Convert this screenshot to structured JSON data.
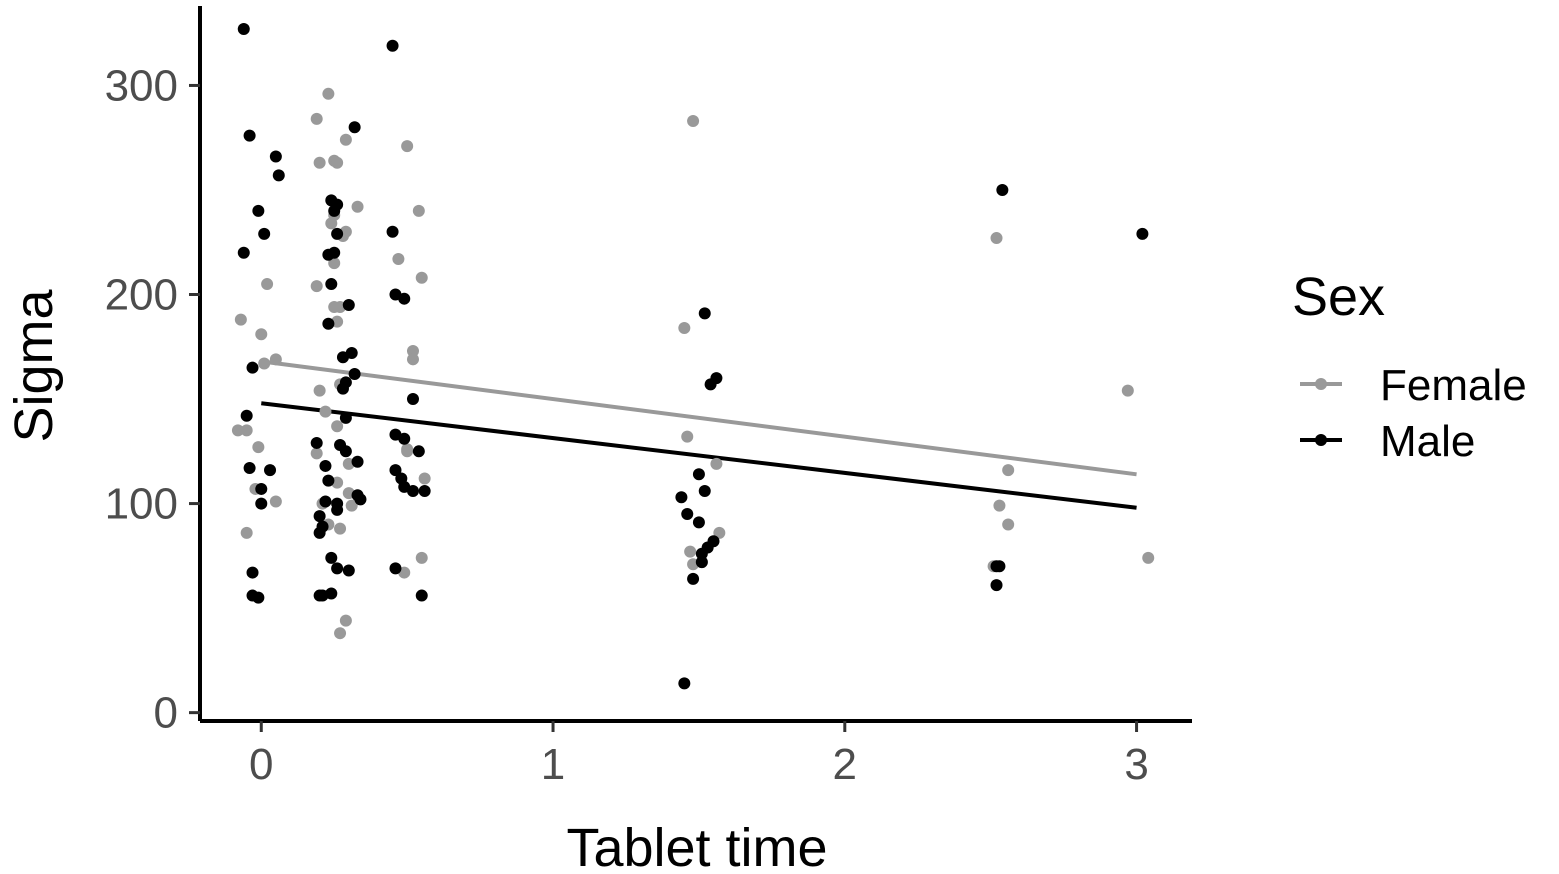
{
  "chart_data": {
    "type": "scatter",
    "title": "",
    "xlabel": "Tablet time",
    "ylabel": "Sigma",
    "xlim": [
      -0.21,
      3.19
    ],
    "ylim": [
      -4,
      338
    ],
    "x_ticks": [
      0,
      1,
      2,
      3
    ],
    "x_tick_labels": [
      "0",
      "1",
      "2",
      "3"
    ],
    "y_ticks": [
      0,
      100,
      200,
      300
    ],
    "y_tick_labels": [
      "0",
      "100",
      "200",
      "300"
    ],
    "grid": false,
    "legend": {
      "title": "Sex",
      "position": "right"
    },
    "series": [
      {
        "name": "Female",
        "color": "#999999",
        "trend": {
          "x": [
            0,
            3
          ],
          "y": [
            168,
            114
          ]
        },
        "points": [
          [
            -0.07,
            188
          ],
          [
            -0.05,
            135
          ],
          [
            -0.08,
            135
          ],
          [
            -0.02,
            107
          ],
          [
            -0.05,
            86
          ],
          [
            -0.01,
            127
          ],
          [
            0.0,
            181
          ],
          [
            0.01,
            167
          ],
          [
            0.02,
            205
          ],
          [
            0.05,
            169
          ],
          [
            0.05,
            101
          ],
          [
            0.19,
            284
          ],
          [
            0.23,
            296
          ],
          [
            0.2,
            263
          ],
          [
            0.19,
            204
          ],
          [
            0.2,
            154
          ],
          [
            0.19,
            124
          ],
          [
            0.21,
            100
          ],
          [
            0.23,
            90
          ],
          [
            0.22,
            144
          ],
          [
            0.24,
            234
          ],
          [
            0.25,
            264
          ],
          [
            0.26,
            263
          ],
          [
            0.25,
            238
          ],
          [
            0.25,
            215
          ],
          [
            0.25,
            194
          ],
          [
            0.26,
            187
          ],
          [
            0.27,
            194
          ],
          [
            0.27,
            157
          ],
          [
            0.26,
            137
          ],
          [
            0.26,
            110
          ],
          [
            0.27,
            88
          ],
          [
            0.29,
            274
          ],
          [
            0.28,
            228
          ],
          [
            0.29,
            230
          ],
          [
            0.3,
            119
          ],
          [
            0.3,
            105
          ],
          [
            0.27,
            38
          ],
          [
            0.29,
            44
          ],
          [
            0.31,
            99
          ],
          [
            0.33,
            242
          ],
          [
            0.5,
            271
          ],
          [
            0.47,
            217
          ],
          [
            0.5,
            125
          ],
          [
            0.5,
            126
          ],
          [
            0.52,
            173
          ],
          [
            0.52,
            169
          ],
          [
            0.49,
            67
          ],
          [
            0.54,
            240
          ],
          [
            0.55,
            208
          ],
          [
            0.56,
            112
          ],
          [
            0.55,
            74
          ],
          [
            1.48,
            283
          ],
          [
            1.45,
            184
          ],
          [
            1.46,
            132
          ],
          [
            1.47,
            77
          ],
          [
            1.48,
            71
          ],
          [
            1.51,
            72
          ],
          [
            1.56,
            119
          ],
          [
            1.57,
            86
          ],
          [
            2.52,
            227
          ],
          [
            2.51,
            70
          ],
          [
            2.53,
            99
          ],
          [
            2.56,
            116
          ],
          [
            2.56,
            90
          ],
          [
            2.97,
            154
          ],
          [
            3.04,
            74
          ]
        ]
      },
      {
        "name": "Male",
        "color": "#000000",
        "trend": {
          "x": [
            0,
            3
          ],
          "y": [
            148,
            98
          ]
        },
        "points": [
          [
            -0.06,
            327
          ],
          [
            -0.04,
            276
          ],
          [
            -0.06,
            220
          ],
          [
            -0.05,
            142
          ],
          [
            -0.03,
            165
          ],
          [
            -0.03,
            67
          ],
          [
            -0.04,
            117
          ],
          [
            -0.01,
            240
          ],
          [
            0.01,
            229
          ],
          [
            0.0,
            107
          ],
          [
            0.0,
            100
          ],
          [
            0.03,
            116
          ],
          [
            -0.03,
            56
          ],
          [
            -0.01,
            55
          ],
          [
            0.05,
            266
          ],
          [
            0.06,
            257
          ],
          [
            0.19,
            129
          ],
          [
            0.2,
            94
          ],
          [
            0.2,
            86
          ],
          [
            0.2,
            56
          ],
          [
            0.21,
            89
          ],
          [
            0.21,
            56
          ],
          [
            0.22,
            118
          ],
          [
            0.22,
            101
          ],
          [
            0.23,
            219
          ],
          [
            0.23,
            186
          ],
          [
            0.23,
            111
          ],
          [
            0.24,
            245
          ],
          [
            0.24,
            205
          ],
          [
            0.24,
            74
          ],
          [
            0.24,
            57
          ],
          [
            0.25,
            240
          ],
          [
            0.25,
            220
          ],
          [
            0.26,
            229
          ],
          [
            0.26,
            243
          ],
          [
            0.26,
            100
          ],
          [
            0.26,
            97
          ],
          [
            0.26,
            69
          ],
          [
            0.27,
            128
          ],
          [
            0.28,
            155
          ],
          [
            0.28,
            170
          ],
          [
            0.29,
            158
          ],
          [
            0.29,
            141
          ],
          [
            0.29,
            125
          ],
          [
            0.3,
            68
          ],
          [
            0.3,
            195
          ],
          [
            0.31,
            172
          ],
          [
            0.32,
            280
          ],
          [
            0.32,
            162
          ],
          [
            0.33,
            104
          ],
          [
            0.33,
            120
          ],
          [
            0.34,
            102
          ],
          [
            0.45,
            319
          ],
          [
            0.45,
            230
          ],
          [
            0.46,
            116
          ],
          [
            0.46,
            69
          ],
          [
            0.46,
            133
          ],
          [
            0.46,
            200
          ],
          [
            0.49,
            131
          ],
          [
            0.48,
            112
          ],
          [
            0.49,
            108
          ],
          [
            0.49,
            198
          ],
          [
            0.52,
            150
          ],
          [
            0.52,
            106
          ],
          [
            0.54,
            125
          ],
          [
            0.55,
            56
          ],
          [
            0.56,
            106
          ],
          [
            1.44,
            103
          ],
          [
            1.45,
            14
          ],
          [
            1.46,
            95
          ],
          [
            1.5,
            91
          ],
          [
            1.48,
            64
          ],
          [
            1.5,
            114
          ],
          [
            1.51,
            72
          ],
          [
            1.51,
            76
          ],
          [
            1.52,
            191
          ],
          [
            1.52,
            106
          ],
          [
            1.53,
            79
          ],
          [
            1.54,
            157
          ],
          [
            1.55,
            82
          ],
          [
            1.56,
            160
          ],
          [
            2.54,
            250
          ],
          [
            2.52,
            70
          ],
          [
            2.53,
            70
          ],
          [
            2.52,
            61
          ],
          [
            3.02,
            229
          ]
        ]
      }
    ]
  }
}
